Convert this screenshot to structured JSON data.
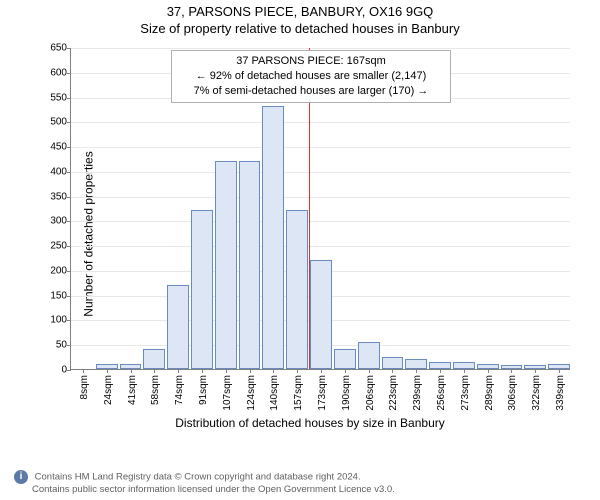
{
  "header": {
    "address": "37, PARSONS PIECE, BANBURY, OX16 9GQ",
    "subtitle": "Size of property relative to detached houses in Banbury"
  },
  "y_axis": {
    "label": "Number of detached properties",
    "min": 0,
    "max": 650,
    "step": 50,
    "ticks": [
      0,
      50,
      100,
      150,
      200,
      250,
      300,
      350,
      400,
      450,
      500,
      550,
      600,
      650
    ]
  },
  "x_axis": {
    "label": "Distribution of detached houses by size in Banbury",
    "tick_labels": [
      "8sqm",
      "24sqm",
      "41sqm",
      "58sqm",
      "74sqm",
      "91sqm",
      "107sqm",
      "124sqm",
      "140sqm",
      "157sqm",
      "173sqm",
      "190sqm",
      "206sqm",
      "223sqm",
      "239sqm",
      "256sqm",
      "273sqm",
      "289sqm",
      "306sqm",
      "322sqm",
      "339sqm"
    ]
  },
  "chart": {
    "type": "histogram",
    "bar_fill_color": "#dce6f4",
    "bar_border_color": "#6a8bc0",
    "grid_color": "#e8e8e8",
    "axis_color": "#808080",
    "background_color": "#ffffff",
    "refline_color": "#e03030",
    "values": [
      0,
      10,
      10,
      40,
      170,
      320,
      420,
      420,
      530,
      320,
      220,
      40,
      55,
      25,
      20,
      15,
      15,
      10,
      8,
      8,
      10
    ],
    "refline_index": 10
  },
  "annotation": {
    "line1": "37 PARSONS PIECE: 167sqm",
    "line2": "← 92% of detached houses are smaller (2,147)",
    "line3": "7% of semi-detached houses are larger (170) →"
  },
  "footer": {
    "line1": "Contains HM Land Registry data © Crown copyright and database right 2024.",
    "line2": "Contains public sector information licensed under the Open Government Licence v3.0."
  }
}
